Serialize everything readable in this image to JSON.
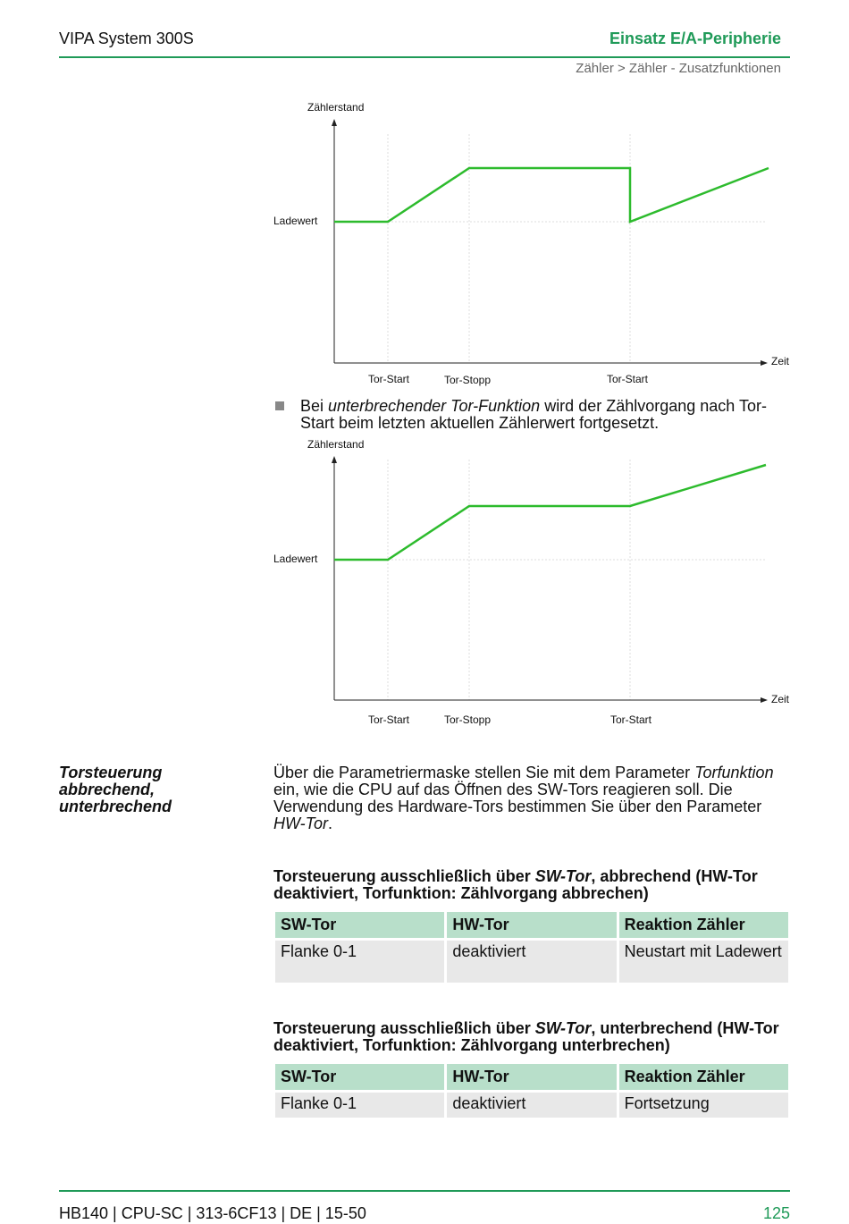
{
  "header": {
    "left": "VIPA System 300S",
    "right": "Einsatz E/A-Peripherie",
    "breadcrumb": "Zähler > Zähler - Zusatzfunktionen"
  },
  "diagrams": [
    {
      "y_label": "Zählerstand",
      "load_label": "Ladewert",
      "x_label": "Zeit",
      "events": [
        "Tor-Start",
        "Tor-Stopp",
        "Tor-Start"
      ]
    },
    {
      "y_label": "Zählerstand",
      "load_label": "Ladewert",
      "x_label": "Zeit",
      "events": [
        "Tor-Start",
        "Tor-Stopp",
        "Tor-Start"
      ]
    }
  ],
  "bullet": [
    "Bei ",
    "unterbrechender Tor-Funktion",
    " wird der Zählvorgang nach Tor-Start beim letzten aktuellen Zählerwert fortgesetzt."
  ],
  "section": {
    "heading": "Torsteuerung abbrechend, unterbrechend",
    "text": [
      "Über die Parametriermaske stellen Sie mit dem Parameter ",
      "Torfunktion",
      " ein, wie die CPU auf das Öffnen des SW-Tors reagieren soll. Die Verwendung des Hardware-Tors bestimmen Sie über den Parameter ",
      "HW-Tor",
      "."
    ]
  },
  "tables": [
    {
      "caption": [
        "Torsteuerung ausschließlich über ",
        "SW-Tor",
        ", abbrechend (HW-Tor deaktiviert, Torfunktion: Zählvorgang abbrechen)"
      ],
      "header": [
        "SW-Tor",
        "HW-Tor",
        "Reaktion Zähler"
      ],
      "rows": [
        [
          "Flanke 0-1",
          "deaktiviert",
          "Neustart mit Ladewert"
        ]
      ]
    },
    {
      "caption": [
        "Torsteuerung ausschließlich über ",
        "SW-Tor",
        ", unterbrechend (HW-Tor deaktiviert, Torfunktion: Zählvorgang unterbrechen)"
      ],
      "header": [
        "SW-Tor",
        "HW-Tor",
        "Reaktion Zähler"
      ],
      "rows": [
        [
          "Flanke 0-1",
          "deaktiviert",
          "Fortsetzung"
        ]
      ]
    }
  ],
  "footer": {
    "left": "HB140 | CPU-SC | 313-6CF13 | DE | 15-50",
    "page": "125"
  }
}
